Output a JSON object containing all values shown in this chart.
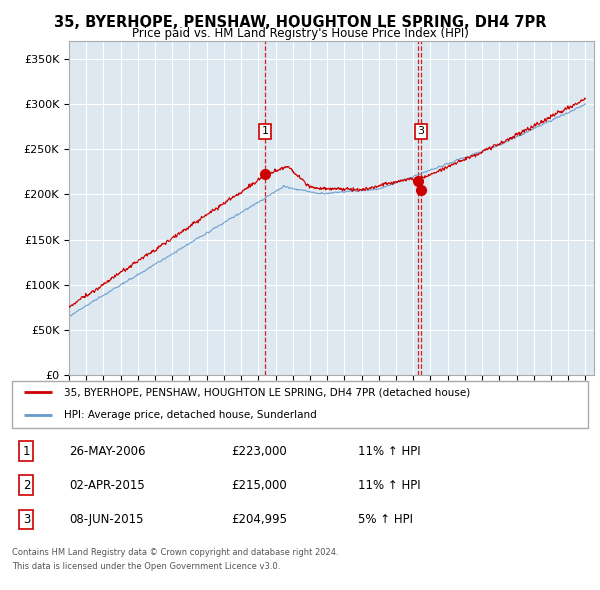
{
  "title": "35, BYERHOPE, PENSHAW, HOUGHTON LE SPRING, DH4 7PR",
  "subtitle": "Price paid vs. HM Land Registry's House Price Index (HPI)",
  "legend_line1": "35, BYERHOPE, PENSHAW, HOUGHTON LE SPRING, DH4 7PR (detached house)",
  "legend_line2": "HPI: Average price, detached house, Sunderland",
  "footer1": "Contains HM Land Registry data © Crown copyright and database right 2024.",
  "footer2": "This data is licensed under the Open Government Licence v3.0.",
  "table": [
    {
      "num": "1",
      "date": "26-MAY-2006",
      "price": "£223,000",
      "change": "11% ↑ HPI"
    },
    {
      "num": "2",
      "date": "02-APR-2015",
      "price": "£215,000",
      "change": "11% ↑ HPI"
    },
    {
      "num": "3",
      "date": "08-JUN-2015",
      "price": "£204,995",
      "change": "5% ↑ HPI"
    }
  ],
  "sale_dates": [
    2006.39,
    2015.25,
    2015.44
  ],
  "sale_prices": [
    223000,
    215000,
    204995
  ],
  "sale_labels": [
    "1",
    "3"
  ],
  "sale_label_indices": [
    0,
    2
  ],
  "vline_color": "#cc0000",
  "hpi_color": "#6699cc",
  "price_color": "#cc0000",
  "plot_bg_color": "#dde8f0",
  "ylim": [
    0,
    370000
  ],
  "yticks": [
    0,
    50000,
    100000,
    150000,
    200000,
    250000,
    300000,
    350000
  ],
  "xmin": 1995,
  "xmax": 2025.5,
  "bg_color": "#ffffff",
  "grid_color": "#ffffff"
}
